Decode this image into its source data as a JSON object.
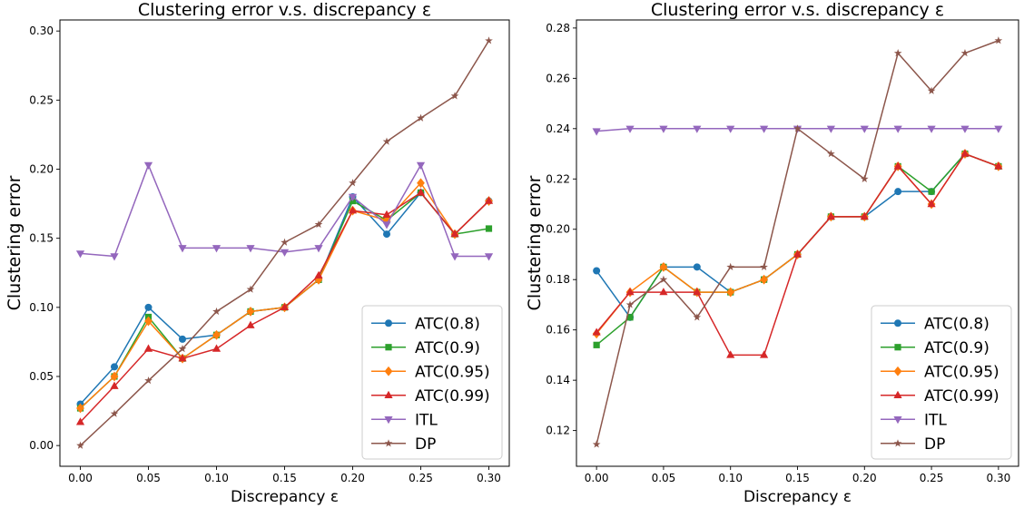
{
  "chart_data": [
    {
      "type": "line",
      "title": "Clustering error v.s. discrepancy ε",
      "xlabel": "Discrepancy ε",
      "ylabel": "Clustering error",
      "xlim": [
        -0.015,
        0.315
      ],
      "ylim": [
        -0.015,
        0.308
      ],
      "xticks": [
        0.0,
        0.05,
        0.1,
        0.15,
        0.2,
        0.25,
        0.3
      ],
      "xtick_labels": [
        "0.00",
        "0.05",
        "0.10",
        "0.15",
        "0.20",
        "0.25",
        "0.30"
      ],
      "yticks": [
        0.0,
        0.05,
        0.1,
        0.15,
        0.2,
        0.25,
        0.3
      ],
      "ytick_labels": [
        "0.00",
        "0.05",
        "0.10",
        "0.15",
        "0.20",
        "0.25",
        "0.30"
      ],
      "legend_position": "bottom-right",
      "grid": false,
      "x": [
        0.0,
        0.025,
        0.05,
        0.075,
        0.1,
        0.125,
        0.15,
        0.175,
        0.2,
        0.225,
        0.25,
        0.275,
        0.3
      ],
      "series": [
        {
          "name": "ATC(0.8)",
          "color": "#1f77b4",
          "marker": "circle",
          "values": [
            0.03,
            0.057,
            0.1,
            0.077,
            0.08,
            0.097,
            0.1,
            0.12,
            0.18,
            0.153,
            0.183,
            0.153,
            0.177
          ]
        },
        {
          "name": "ATC(0.9)",
          "color": "#2ca02c",
          "marker": "square",
          "values": [
            0.027,
            0.05,
            0.093,
            0.063,
            0.08,
            0.097,
            0.1,
            0.12,
            0.177,
            0.163,
            0.183,
            0.153,
            0.157
          ]
        },
        {
          "name": "ATC(0.95)",
          "color": "#ff7f0e",
          "marker": "diamond",
          "values": [
            0.027,
            0.05,
            0.09,
            0.063,
            0.08,
            0.097,
            0.1,
            0.12,
            0.17,
            0.163,
            0.19,
            0.153,
            0.177
          ]
        },
        {
          "name": "ATC(0.99)",
          "color": "#d62728",
          "marker": "triangle-up",
          "values": [
            0.017,
            0.043,
            0.07,
            0.063,
            0.07,
            0.087,
            0.1,
            0.123,
            0.17,
            0.167,
            0.183,
            0.153,
            0.177
          ]
        },
        {
          "name": "ITL",
          "color": "#9467bd",
          "marker": "triangle-down",
          "values": [
            0.139,
            0.137,
            0.203,
            0.143,
            0.143,
            0.143,
            0.14,
            0.143,
            0.18,
            0.16,
            0.203,
            0.137,
            0.137
          ]
        },
        {
          "name": "DP",
          "color": "#8c564b",
          "marker": "star",
          "values": [
            0.0,
            0.023,
            0.047,
            0.07,
            0.097,
            0.113,
            0.147,
            0.16,
            0.19,
            0.22,
            0.237,
            0.253,
            0.293
          ]
        }
      ]
    },
    {
      "type": "line",
      "title": "Clustering error v.s. discrepancy ε",
      "xlabel": "Discrepancy ε",
      "ylabel": "Clustering error",
      "xlim": [
        -0.015,
        0.315
      ],
      "ylim": [
        0.1058,
        0.2832
      ],
      "xticks": [
        0.0,
        0.05,
        0.1,
        0.15,
        0.2,
        0.25,
        0.3
      ],
      "xtick_labels": [
        "0.00",
        "0.05",
        "0.10",
        "0.15",
        "0.20",
        "0.25",
        "0.30"
      ],
      "yticks": [
        0.12,
        0.14,
        0.16,
        0.18,
        0.2,
        0.22,
        0.24,
        0.26,
        0.28
      ],
      "ytick_labels": [
        "0.12",
        "0.14",
        "0.16",
        "0.18",
        "0.20",
        "0.22",
        "0.24",
        "0.26",
        "0.28"
      ],
      "legend_position": "bottom-right",
      "grid": false,
      "x": [
        0.0,
        0.025,
        0.05,
        0.075,
        0.1,
        0.125,
        0.15,
        0.175,
        0.2,
        0.225,
        0.25,
        0.275,
        0.3
      ],
      "series": [
        {
          "name": "ATC(0.8)",
          "color": "#1f77b4",
          "marker": "circle",
          "values": [
            0.1835,
            0.165,
            0.185,
            0.185,
            0.175,
            0.18,
            0.19,
            0.205,
            0.205,
            0.215,
            0.215,
            0.23,
            0.225
          ]
        },
        {
          "name": "ATC(0.9)",
          "color": "#2ca02c",
          "marker": "square",
          "values": [
            0.154,
            0.165,
            0.185,
            0.175,
            0.175,
            0.18,
            0.19,
            0.205,
            0.205,
            0.225,
            0.215,
            0.23,
            0.225
          ]
        },
        {
          "name": "ATC(0.95)",
          "color": "#ff7f0e",
          "marker": "diamond",
          "values": [
            0.1585,
            0.175,
            0.185,
            0.175,
            0.175,
            0.18,
            0.19,
            0.205,
            0.205,
            0.225,
            0.21,
            0.23,
            0.225
          ]
        },
        {
          "name": "ATC(0.99)",
          "color": "#d62728",
          "marker": "triangle-up",
          "values": [
            0.159,
            0.175,
            0.175,
            0.175,
            0.15,
            0.15,
            0.19,
            0.205,
            0.205,
            0.225,
            0.21,
            0.23,
            0.225
          ]
        },
        {
          "name": "ITL",
          "color": "#9467bd",
          "marker": "triangle-down",
          "values": [
            0.239,
            0.24,
            0.24,
            0.24,
            0.24,
            0.24,
            0.24,
            0.24,
            0.24,
            0.24,
            0.24,
            0.24,
            0.24
          ]
        },
        {
          "name": "DP",
          "color": "#8c564b",
          "marker": "star",
          "values": [
            0.1145,
            0.17,
            0.18,
            0.165,
            0.185,
            0.185,
            0.24,
            0.23,
            0.22,
            0.27,
            0.255,
            0.27,
            0.275
          ]
        }
      ]
    }
  ]
}
